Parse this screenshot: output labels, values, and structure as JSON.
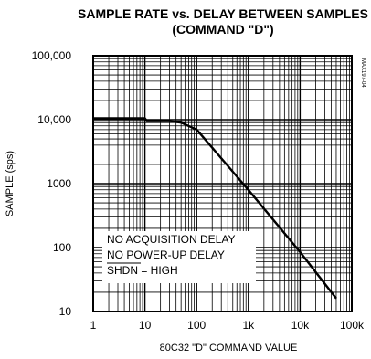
{
  "chart_data": {
    "type": "line",
    "title": "SAMPLE RATE vs. DELAY BETWEEN SAMPLES",
    "subtitle": "(COMMAND \"D\")",
    "xlabel": "80C32 \"D\" COMMAND VALUE",
    "ylabel": "SAMPLE (sps)",
    "xscale": "log",
    "yscale": "log",
    "xlim": [
      1,
      100000
    ],
    "ylim": [
      10,
      100000
    ],
    "x_ticks": [
      {
        "value": 1,
        "label": "1"
      },
      {
        "value": 10,
        "label": "10"
      },
      {
        "value": 100,
        "label": "100"
      },
      {
        "value": 1000,
        "label": "1k"
      },
      {
        "value": 10000,
        "label": "10k"
      },
      {
        "value": 100000,
        "label": "100k"
      }
    ],
    "y_ticks": [
      {
        "value": 10,
        "label": "10"
      },
      {
        "value": 100,
        "label": "100"
      },
      {
        "value": 1000,
        "label": "1000"
      },
      {
        "value": 10000,
        "label": "10,000"
      },
      {
        "value": 100000,
        "label": "100,000"
      }
    ],
    "grid": true,
    "series": [
      {
        "x": [
          1,
          10,
          11,
          30,
          50,
          100,
          1000,
          10000,
          50000
        ],
        "y": [
          10500,
          10500,
          9500,
          9500,
          9000,
          7000,
          800,
          85,
          16
        ]
      }
    ],
    "annotations": [
      "NO ACQUISITION DELAY",
      "NO POWER-UP DELAY",
      "SHDN = HIGH"
    ],
    "side_code": "MAX197-04"
  }
}
